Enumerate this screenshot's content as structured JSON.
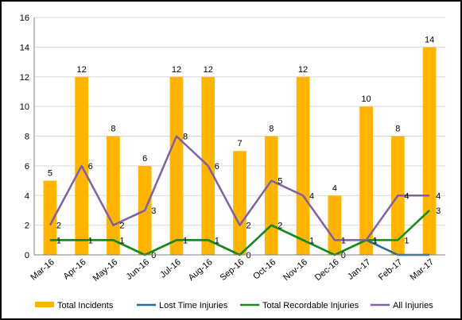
{
  "chart_data": {
    "type": "bar",
    "categories": [
      "Mar-16",
      "Apr-16",
      "May-16",
      "Jun-16",
      "Jul-16",
      "Aug-16",
      "Sep-16",
      "Oct-16",
      "Nov-16",
      "Dec-16",
      "Jan-17",
      "Feb-17",
      "Mar-17"
    ],
    "ylim": [
      0,
      16
    ],
    "yticks": [
      0,
      2,
      4,
      6,
      8,
      10,
      12,
      14,
      16
    ],
    "grid": true,
    "legend": "bottom",
    "series": [
      {
        "name": "Total Incidents",
        "kind": "bar",
        "color": "#FFB400",
        "values": [
          5,
          12,
          8,
          6,
          12,
          12,
          7,
          8,
          12,
          4,
          10,
          8,
          14
        ]
      },
      {
        "name": "Lost Time Injuries",
        "kind": "line",
        "color": "#1F6E9E",
        "values": [
          1,
          1,
          1,
          0,
          1,
          1,
          0,
          2,
          1,
          0,
          1,
          0,
          0
        ]
      },
      {
        "name": "Total Recordable Injuries",
        "kind": "line",
        "color": "#148A14",
        "values": [
          1,
          1,
          1,
          0,
          1,
          1,
          0,
          2,
          1,
          0,
          1,
          1,
          3
        ]
      },
      {
        "name": "All Injuries",
        "kind": "line",
        "color": "#7F5FA8",
        "values": [
          2,
          6,
          2,
          3,
          8,
          6,
          2,
          5,
          4,
          1,
          1,
          4,
          4
        ]
      }
    ]
  }
}
